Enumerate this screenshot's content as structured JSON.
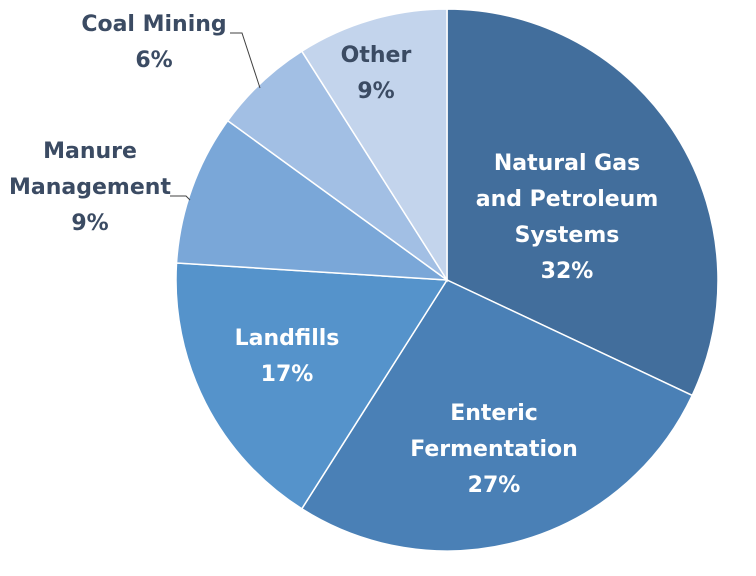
{
  "chart_data": {
    "type": "pie",
    "title": "",
    "slices": [
      {
        "label_lines": [
          "Natural Gas",
          "and Petroleum",
          "Systems"
        ],
        "value": 32,
        "pct_label": "32%",
        "color": "#426e9c"
      },
      {
        "label_lines": [
          "Enteric",
          "Fermentation"
        ],
        "value": 27,
        "pct_label": "27%",
        "color": "#4a80b6"
      },
      {
        "label_lines": [
          "Landfills"
        ],
        "value": 17,
        "pct_label": "17%",
        "color": "#5593cb"
      },
      {
        "label_lines": [
          "Manure",
          "Management"
        ],
        "value": 9,
        "pct_label": "9%",
        "color": "#7aa7d8"
      },
      {
        "label_lines": [
          "Coal Mining"
        ],
        "value": 6,
        "pct_label": "6%",
        "color": "#a2bfe4"
      },
      {
        "label_lines": [
          "Other"
        ],
        "value": 9,
        "pct_label": "9%",
        "color": "#c3d4ec"
      }
    ],
    "legend": "none",
    "start_angle": "12 o'clock",
    "direction": "clockwise"
  }
}
